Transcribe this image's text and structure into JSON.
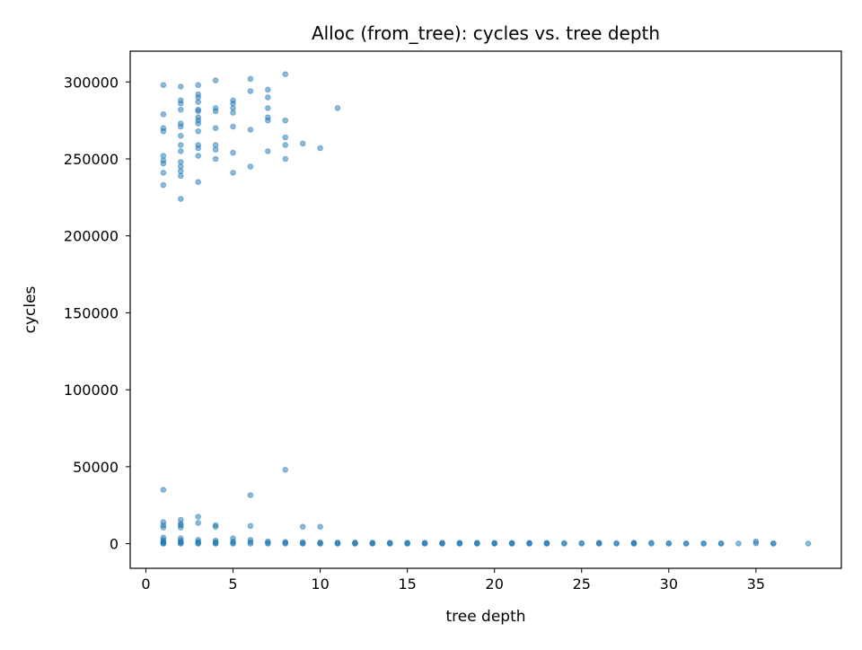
{
  "chart_data": {
    "type": "scatter",
    "title": "Alloc (from_tree): cycles vs. tree depth",
    "xlabel": "tree depth",
    "ylabel": "cycles",
    "xlim": [
      -0.9,
      39.9
    ],
    "ylim": [
      -16000,
      320000
    ],
    "x_ticks": [
      0,
      5,
      10,
      15,
      20,
      25,
      30,
      35
    ],
    "y_ticks": [
      0,
      50000,
      100000,
      150000,
      200000,
      250000,
      300000
    ],
    "x_tick_labels": [
      "0",
      "5",
      "10",
      "15",
      "20",
      "25",
      "30",
      "35"
    ],
    "y_tick_labels": [
      "0",
      "50000",
      "100000",
      "150000",
      "200000",
      "250000",
      "300000"
    ],
    "grid": false,
    "legend": "none",
    "marker_color": "#1f77b4",
    "marker_alpha": 0.5,
    "points": [
      {
        "x": 1,
        "y": 298000
      },
      {
        "x": 1,
        "y": 279000
      },
      {
        "x": 1,
        "y": 270000
      },
      {
        "x": 1,
        "y": 268000
      },
      {
        "x": 1,
        "y": 252000
      },
      {
        "x": 1,
        "y": 249000
      },
      {
        "x": 1,
        "y": 247000
      },
      {
        "x": 1,
        "y": 241000
      },
      {
        "x": 1,
        "y": 233000
      },
      {
        "x": 2,
        "y": 297000
      },
      {
        "x": 2,
        "y": 288000
      },
      {
        "x": 2,
        "y": 286000
      },
      {
        "x": 2,
        "y": 282000
      },
      {
        "x": 2,
        "y": 273000
      },
      {
        "x": 2,
        "y": 271000
      },
      {
        "x": 2,
        "y": 265000
      },
      {
        "x": 2,
        "y": 259000
      },
      {
        "x": 2,
        "y": 255000
      },
      {
        "x": 2,
        "y": 248000
      },
      {
        "x": 2,
        "y": 245000
      },
      {
        "x": 2,
        "y": 242000
      },
      {
        "x": 2,
        "y": 239000
      },
      {
        "x": 2,
        "y": 224000
      },
      {
        "x": 3,
        "y": 298000
      },
      {
        "x": 3,
        "y": 292000
      },
      {
        "x": 3,
        "y": 290000
      },
      {
        "x": 3,
        "y": 287000
      },
      {
        "x": 3,
        "y": 282000
      },
      {
        "x": 3,
        "y": 281000
      },
      {
        "x": 3,
        "y": 277000
      },
      {
        "x": 3,
        "y": 275000
      },
      {
        "x": 3,
        "y": 273000
      },
      {
        "x": 3,
        "y": 268000
      },
      {
        "x": 3,
        "y": 259000
      },
      {
        "x": 3,
        "y": 257000
      },
      {
        "x": 3,
        "y": 252000
      },
      {
        "x": 3,
        "y": 235000
      },
      {
        "x": 4,
        "y": 301000
      },
      {
        "x": 4,
        "y": 283000
      },
      {
        "x": 4,
        "y": 281000
      },
      {
        "x": 4,
        "y": 270000
      },
      {
        "x": 4,
        "y": 259000
      },
      {
        "x": 4,
        "y": 256000
      },
      {
        "x": 4,
        "y": 250000
      },
      {
        "x": 5,
        "y": 288000
      },
      {
        "x": 5,
        "y": 286000
      },
      {
        "x": 5,
        "y": 283000
      },
      {
        "x": 5,
        "y": 280000
      },
      {
        "x": 5,
        "y": 271000
      },
      {
        "x": 5,
        "y": 254000
      },
      {
        "x": 5,
        "y": 241000
      },
      {
        "x": 6,
        "y": 302000
      },
      {
        "x": 6,
        "y": 294000
      },
      {
        "x": 6,
        "y": 269000
      },
      {
        "x": 6,
        "y": 245000
      },
      {
        "x": 7,
        "y": 295000
      },
      {
        "x": 7,
        "y": 290000
      },
      {
        "x": 7,
        "y": 283000
      },
      {
        "x": 7,
        "y": 277000
      },
      {
        "x": 7,
        "y": 275000
      },
      {
        "x": 7,
        "y": 255000
      },
      {
        "x": 8,
        "y": 305000
      },
      {
        "x": 8,
        "y": 275000
      },
      {
        "x": 8,
        "y": 264000
      },
      {
        "x": 8,
        "y": 259000
      },
      {
        "x": 8,
        "y": 250000
      },
      {
        "x": 9,
        "y": 260000
      },
      {
        "x": 10,
        "y": 257000
      },
      {
        "x": 11,
        "y": 283000
      },
      {
        "x": 1,
        "y": 35000
      },
      {
        "x": 1,
        "y": 14000
      },
      {
        "x": 1,
        "y": 12000
      },
      {
        "x": 1,
        "y": 10500
      },
      {
        "x": 1,
        "y": 4000
      },
      {
        "x": 1,
        "y": 2500
      },
      {
        "x": 1,
        "y": 1500
      },
      {
        "x": 1,
        "y": 800
      },
      {
        "x": 1,
        "y": 300
      },
      {
        "x": 1,
        "y": 0
      },
      {
        "x": 2,
        "y": 15500
      },
      {
        "x": 2,
        "y": 13000
      },
      {
        "x": 2,
        "y": 12000
      },
      {
        "x": 2,
        "y": 10500
      },
      {
        "x": 2,
        "y": 3500
      },
      {
        "x": 2,
        "y": 2000
      },
      {
        "x": 2,
        "y": 1000
      },
      {
        "x": 2,
        "y": 500
      },
      {
        "x": 2,
        "y": 0
      },
      {
        "x": 3,
        "y": 17500
      },
      {
        "x": 3,
        "y": 13500
      },
      {
        "x": 3,
        "y": 2500
      },
      {
        "x": 3,
        "y": 1200
      },
      {
        "x": 3,
        "y": 300
      },
      {
        "x": 3,
        "y": 0
      },
      {
        "x": 4,
        "y": 12000
      },
      {
        "x": 4,
        "y": 11000
      },
      {
        "x": 4,
        "y": 2000
      },
      {
        "x": 4,
        "y": 1000
      },
      {
        "x": 4,
        "y": 300
      },
      {
        "x": 4,
        "y": 0
      },
      {
        "x": 5,
        "y": 3500
      },
      {
        "x": 5,
        "y": 1500
      },
      {
        "x": 5,
        "y": 500
      },
      {
        "x": 5,
        "y": 0
      },
      {
        "x": 6,
        "y": 31500
      },
      {
        "x": 6,
        "y": 11500
      },
      {
        "x": 6,
        "y": 2500
      },
      {
        "x": 6,
        "y": 1000
      },
      {
        "x": 6,
        "y": 0
      },
      {
        "x": 7,
        "y": 1500
      },
      {
        "x": 7,
        "y": 500
      },
      {
        "x": 7,
        "y": 0
      },
      {
        "x": 8,
        "y": 48000
      },
      {
        "x": 8,
        "y": 1200
      },
      {
        "x": 8,
        "y": 500
      },
      {
        "x": 8,
        "y": 0
      },
      {
        "x": 9,
        "y": 11000
      },
      {
        "x": 9,
        "y": 1000
      },
      {
        "x": 9,
        "y": 300
      },
      {
        "x": 9,
        "y": 0
      },
      {
        "x": 10,
        "y": 11000
      },
      {
        "x": 10,
        "y": 900
      },
      {
        "x": 10,
        "y": 200
      },
      {
        "x": 10,
        "y": 0
      },
      {
        "x": 11,
        "y": 800
      },
      {
        "x": 11,
        "y": 200
      },
      {
        "x": 11,
        "y": 0
      },
      {
        "x": 12,
        "y": 800
      },
      {
        "x": 12,
        "y": 200
      },
      {
        "x": 12,
        "y": 0
      },
      {
        "x": 13,
        "y": 700
      },
      {
        "x": 13,
        "y": 200
      },
      {
        "x": 13,
        "y": 0
      },
      {
        "x": 14,
        "y": 700
      },
      {
        "x": 14,
        "y": 200
      },
      {
        "x": 14,
        "y": 0
      },
      {
        "x": 15,
        "y": 700
      },
      {
        "x": 15,
        "y": 200
      },
      {
        "x": 15,
        "y": 0
      },
      {
        "x": 16,
        "y": 600
      },
      {
        "x": 16,
        "y": 200
      },
      {
        "x": 16,
        "y": 0
      },
      {
        "x": 17,
        "y": 600
      },
      {
        "x": 17,
        "y": 200
      },
      {
        "x": 17,
        "y": 0
      },
      {
        "x": 18,
        "y": 600
      },
      {
        "x": 18,
        "y": 200
      },
      {
        "x": 18,
        "y": 0
      },
      {
        "x": 19,
        "y": 600
      },
      {
        "x": 19,
        "y": 200
      },
      {
        "x": 19,
        "y": 0
      },
      {
        "x": 20,
        "y": 500
      },
      {
        "x": 20,
        "y": 200
      },
      {
        "x": 20,
        "y": 0
      },
      {
        "x": 21,
        "y": 500
      },
      {
        "x": 21,
        "y": 200
      },
      {
        "x": 21,
        "y": 0
      },
      {
        "x": 22,
        "y": 500
      },
      {
        "x": 22,
        "y": 200
      },
      {
        "x": 22,
        "y": 0
      },
      {
        "x": 23,
        "y": 500
      },
      {
        "x": 23,
        "y": 200
      },
      {
        "x": 23,
        "y": 0
      },
      {
        "x": 24,
        "y": 400
      },
      {
        "x": 24,
        "y": 0
      },
      {
        "x": 25,
        "y": 400
      },
      {
        "x": 25,
        "y": 0
      },
      {
        "x": 26,
        "y": 600
      },
      {
        "x": 26,
        "y": 200
      },
      {
        "x": 26,
        "y": 0
      },
      {
        "x": 27,
        "y": 300
      },
      {
        "x": 27,
        "y": 0
      },
      {
        "x": 28,
        "y": 700
      },
      {
        "x": 28,
        "y": 200
      },
      {
        "x": 28,
        "y": 0
      },
      {
        "x": 29,
        "y": 600
      },
      {
        "x": 29,
        "y": 0
      },
      {
        "x": 30,
        "y": 300
      },
      {
        "x": 30,
        "y": 0
      },
      {
        "x": 31,
        "y": 200
      },
      {
        "x": 31,
        "y": 0
      },
      {
        "x": 32,
        "y": 200
      },
      {
        "x": 32,
        "y": 0
      },
      {
        "x": 33,
        "y": 200
      },
      {
        "x": 33,
        "y": 0
      },
      {
        "x": 34,
        "y": 100
      },
      {
        "x": 35,
        "y": 1500
      },
      {
        "x": 35,
        "y": 200
      },
      {
        "x": 36,
        "y": 200
      },
      {
        "x": 36,
        "y": 0
      },
      {
        "x": 38,
        "y": 100
      }
    ]
  }
}
